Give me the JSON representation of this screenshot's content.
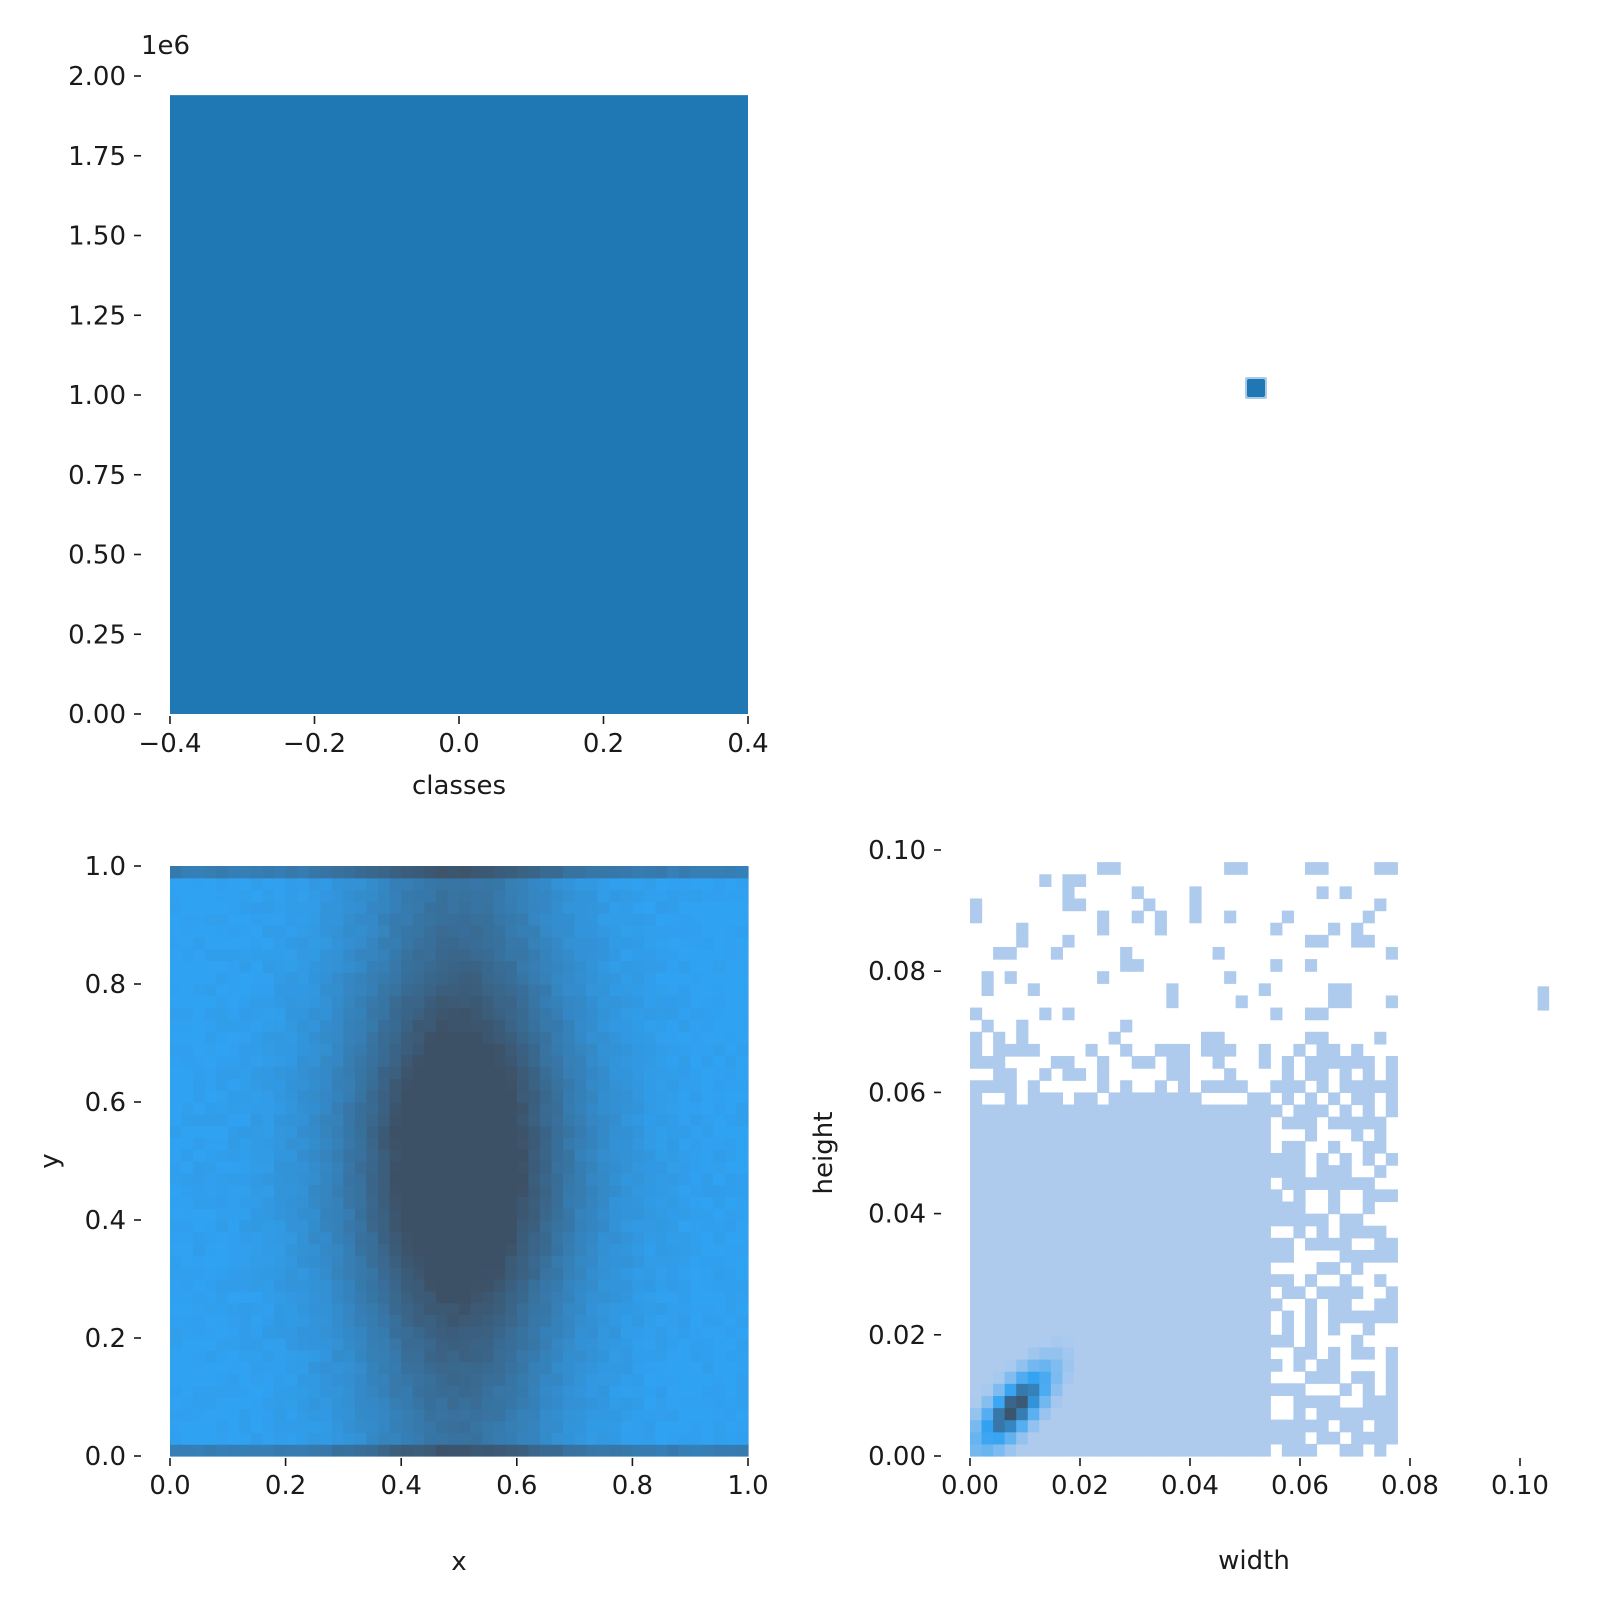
{
  "chart_data": [
    {
      "panel": "top-left",
      "type": "bar",
      "xlabel": "classes",
      "ylabel": "",
      "offset_text": "1e6",
      "xlim": [
        -0.4,
        0.4
      ],
      "ylim": [
        0,
        2000000
      ],
      "xticks": [
        "−0.4",
        "−0.2",
        "0.0",
        "0.2",
        "0.4"
      ],
      "yticks": [
        "0.00",
        "0.25",
        "0.50",
        "0.75",
        "1.00",
        "1.25",
        "1.50",
        "1.75",
        "2.00"
      ],
      "bars": [
        {
          "x0": -0.4,
          "x1": 0.4,
          "value": 1940000
        }
      ],
      "color": "#1f77b4"
    },
    {
      "panel": "top-right",
      "type": "heatmap",
      "xlabel": "",
      "ylabel": "",
      "cells": [
        {
          "value": 1
        }
      ],
      "color": "#1f77b4"
    },
    {
      "panel": "bottom-left",
      "type": "heatmap",
      "xlabel": "x",
      "ylabel": "y",
      "xlim": [
        0,
        1
      ],
      "ylim": [
        0,
        1
      ],
      "xticks": [
        "0.0",
        "0.2",
        "0.4",
        "0.6",
        "0.8",
        "1.0"
      ],
      "yticks": [
        "0.0",
        "0.2",
        "0.4",
        "0.6",
        "0.8",
        "1.0"
      ],
      "bins": [
        50,
        50
      ],
      "density": "peak near (0.5, 0.5), dense rows at y≈0 and y≈1, lighter toward left/right edges",
      "color_low": "#30a2f2",
      "color_high": "#3d5166"
    },
    {
      "panel": "bottom-right",
      "type": "heatmap",
      "xlabel": "width",
      "ylabel": "height",
      "xlim": [
        0,
        0.105
      ],
      "ylim": [
        0,
        0.1
      ],
      "xticks": [
        "0.00",
        "0.02",
        "0.04",
        "0.06",
        "0.08",
        "0.10"
      ],
      "yticks": [
        "0.00",
        "0.02",
        "0.04",
        "0.06",
        "0.08",
        "0.10"
      ],
      "bins": [
        50,
        50
      ],
      "density": "concentrated along diagonal near (0.008, 0.008); sparse cells above 0.06",
      "color_low": "#aecbee",
      "color_mid": "#30a2f2",
      "color_high": "#3d5166"
    }
  ]
}
